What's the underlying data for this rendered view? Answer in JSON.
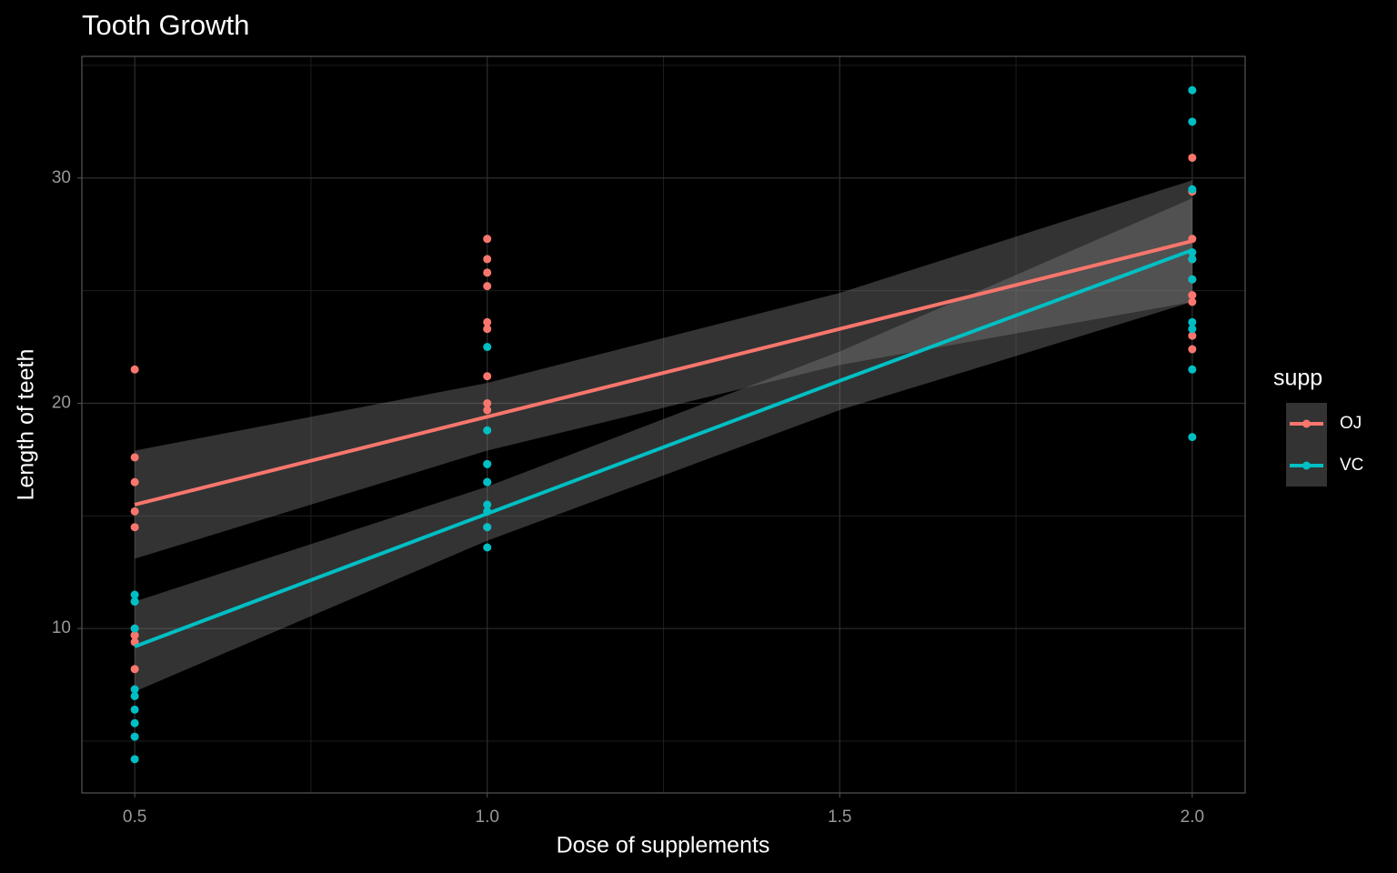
{
  "chart_data": {
    "type": "scatter",
    "title": "Tooth Growth",
    "x_label": "Dose of supplements",
    "y_label": "Length of teeth",
    "legend_title": "supp",
    "legend_position": "right",
    "grid": true,
    "xlim": [
      0.425,
      2.075
    ],
    "ylim": [
      2.7,
      35.4
    ],
    "xticks": [
      {
        "value": 0.5,
        "label": "0.5"
      },
      {
        "value": 1,
        "label": "1.0"
      },
      {
        "value": 1.5,
        "label": "1.5"
      },
      {
        "value": 2,
        "label": "2.0"
      }
    ],
    "yticks": [
      10,
      20,
      30
    ],
    "x_minor_grid": [
      0.75,
      1.25,
      1.75
    ],
    "y_minor_grid": [
      5,
      15,
      25,
      35
    ],
    "series": [
      {
        "name": "OJ",
        "color": "#F8766D",
        "x": [
          0.5,
          0.5,
          0.5,
          0.5,
          0.5,
          0.5,
          0.5,
          0.5,
          0.5,
          0.5,
          1,
          1,
          1,
          1,
          1,
          1,
          1,
          1,
          1,
          1,
          2,
          2,
          2,
          2,
          2,
          2,
          2,
          2,
          2,
          2
        ],
        "values": [
          15.2,
          21.5,
          17.6,
          9.7,
          14.5,
          10.0,
          8.2,
          9.4,
          16.5,
          9.7,
          19.7,
          23.3,
          23.6,
          26.4,
          20.0,
          25.2,
          25.8,
          21.2,
          14.5,
          27.3,
          25.5,
          26.4,
          22.4,
          24.5,
          24.8,
          30.9,
          26.4,
          27.3,
          29.4,
          23.0
        ],
        "fit": {
          "x": [
            0.5,
            1,
            1.5,
            2
          ],
          "values": [
            15.5,
            19.4,
            23.3,
            27.2
          ],
          "lower": [
            13.1,
            17.9,
            21.7,
            24.5
          ],
          "upper": [
            17.9,
            20.9,
            24.9,
            29.9
          ]
        }
      },
      {
        "name": "VC",
        "color": "#00BFC4",
        "x": [
          0.5,
          0.5,
          0.5,
          0.5,
          0.5,
          0.5,
          0.5,
          0.5,
          0.5,
          0.5,
          1,
          1,
          1,
          1,
          1,
          1,
          1,
          1,
          1,
          1,
          2,
          2,
          2,
          2,
          2,
          2,
          2,
          2,
          2,
          2
        ],
        "values": [
          4.2,
          11.5,
          7.3,
          5.8,
          6.4,
          10.0,
          11.2,
          11.2,
          5.2,
          7.0,
          16.5,
          16.5,
          15.2,
          17.3,
          22.5,
          17.3,
          13.6,
          14.5,
          18.8,
          15.5,
          23.6,
          18.5,
          33.9,
          25.5,
          26.4,
          32.5,
          26.7,
          21.5,
          23.3,
          29.5
        ],
        "fit": {
          "x": [
            0.5,
            1,
            1.5,
            2
          ],
          "values": [
            9.2,
            15.1,
            21.0,
            26.8
          ],
          "lower": [
            7.2,
            13.9,
            19.7,
            24.5
          ],
          "upper": [
            11.2,
            16.3,
            22.3,
            29.1
          ]
        }
      }
    ]
  }
}
